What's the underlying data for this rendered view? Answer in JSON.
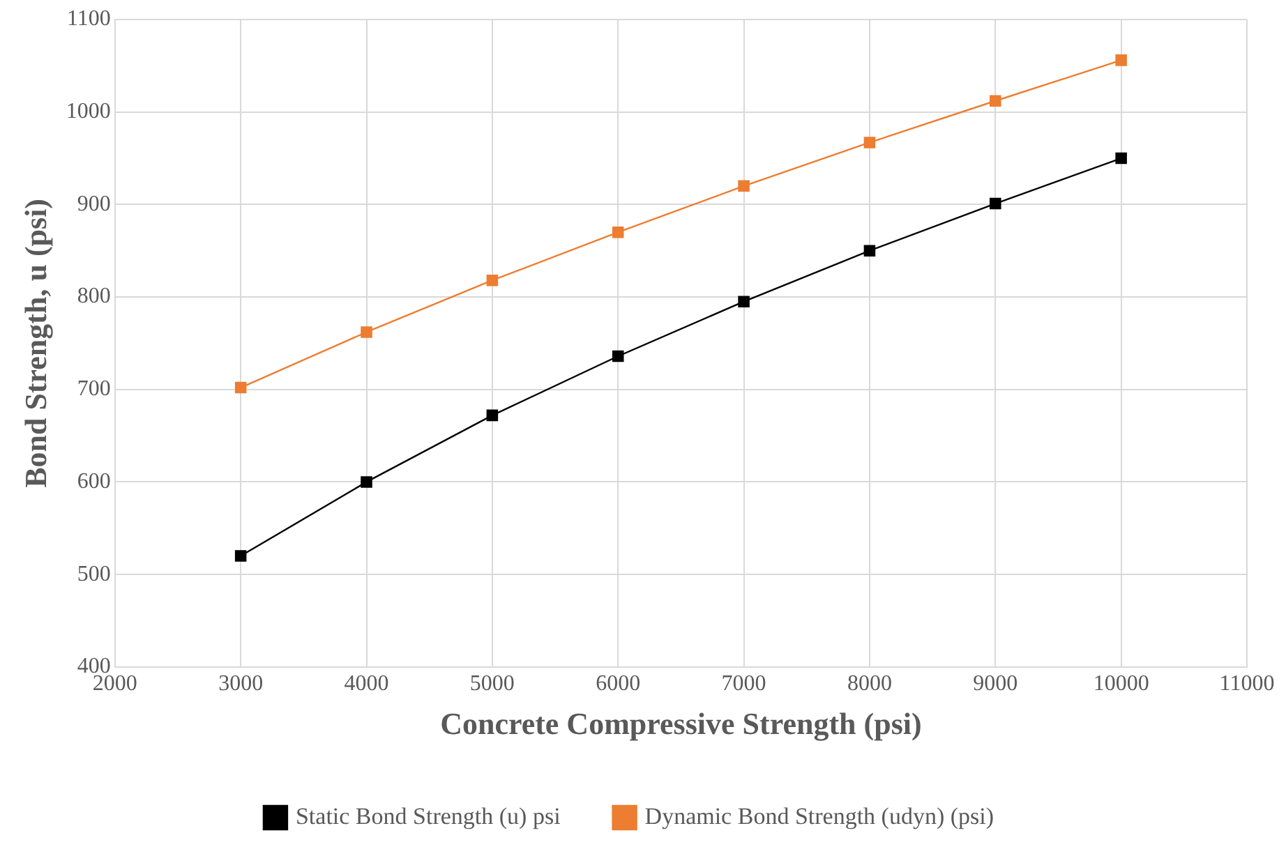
{
  "chart_data": {
    "type": "line",
    "xlabel": "Concrete Compressive Strength (psi)",
    "ylabel": "Bond Strength, u (psi)",
    "x": [
      3000,
      4000,
      5000,
      6000,
      7000,
      8000,
      9000,
      10000
    ],
    "series": [
      {
        "name": "Static Bond Strength (u) psi",
        "color": "#000000",
        "values": [
          520,
          600,
          672,
          736,
          795,
          850,
          901,
          950
        ]
      },
      {
        "name": "Dynamic Bond Strength (udyn) (psi)",
        "color": "#ed7d31",
        "values": [
          702,
          762,
          818,
          870,
          920,
          967,
          1012,
          1056
        ]
      }
    ],
    "xlim": [
      2000,
      11000
    ],
    "xticks": [
      2000,
      3000,
      4000,
      5000,
      6000,
      7000,
      8000,
      9000,
      10000,
      11000
    ],
    "ylim": [
      400,
      1100
    ],
    "yticks": [
      400,
      500,
      600,
      700,
      800,
      900,
      1000,
      1100
    ],
    "grid": true,
    "legend": "bottom",
    "marker": "square",
    "line_style": "solid"
  }
}
